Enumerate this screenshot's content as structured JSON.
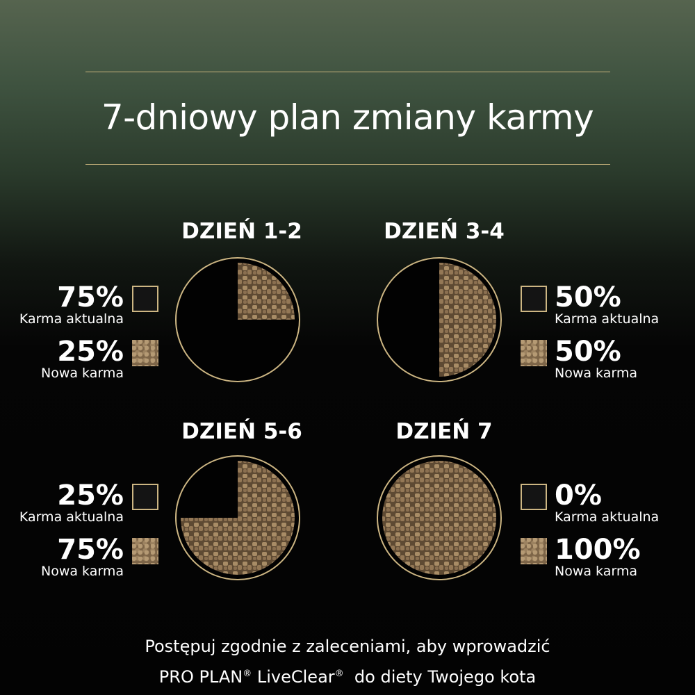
{
  "title": "7-dniowy plan zmiany karmy",
  "colors": {
    "gold": "#cdb683",
    "kibble": "#8a6f50",
    "background_top": "#4a5a48",
    "background": "#030303"
  },
  "days": [
    {
      "label": "DZIEŃ 1-2",
      "current_pct": "75%",
      "current_label": "Karma aktualna",
      "new_pct": "25%",
      "new_label": "Nowa karma",
      "new_fraction": 0.25
    },
    {
      "label": "DZIEŃ 3-4",
      "current_pct": "50%",
      "current_label": "Karma aktualna",
      "new_pct": "50%",
      "new_label": "Nowa karma",
      "new_fraction": 0.5
    },
    {
      "label": "DZIEŃ 5-6",
      "current_pct": "25%",
      "current_label": "Karma aktualna",
      "new_pct": "75%",
      "new_label": "Nowa karma",
      "new_fraction": 0.75
    },
    {
      "label": "DZIEŃ 7",
      "current_pct": "0%",
      "current_label": "Karma aktualna",
      "new_pct": "100%",
      "new_label": "Nowa karma",
      "new_fraction": 1.0
    }
  ],
  "footer": {
    "line1": "Postępuj zgodnie z zaleceniami, aby wprowadzić",
    "brand1": "PRO PLAN",
    "brand2": "LiveClear",
    "reg": "®",
    "line2_end": "do diety Twojego kota"
  }
}
